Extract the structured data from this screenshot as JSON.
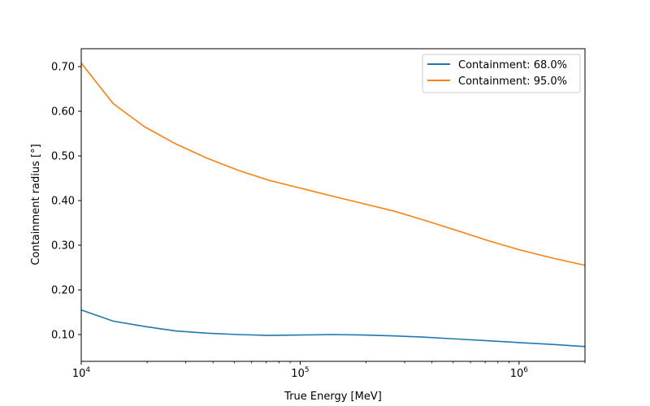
{
  "chart_data": {
    "type": "line",
    "title": "",
    "xlabel": "True Energy [MeV]",
    "ylabel": "Containment radius [°]",
    "xscale": "log",
    "xlim": [
      10000,
      2000000
    ],
    "ylim": [
      0.04,
      0.74
    ],
    "x_ticks": [
      {
        "value": 10000,
        "base": "10",
        "exp": "4"
      },
      {
        "value": 100000,
        "base": "10",
        "exp": "5"
      },
      {
        "value": 1000000,
        "base": "10",
        "exp": "6"
      }
    ],
    "y_ticks": [
      {
        "value": 0.1,
        "label": "0.10"
      },
      {
        "value": 0.2,
        "label": "0.20"
      },
      {
        "value": 0.3,
        "label": "0.30"
      },
      {
        "value": 0.4,
        "label": "0.40"
      },
      {
        "value": 0.5,
        "label": "0.50"
      },
      {
        "value": 0.6,
        "label": "0.60"
      },
      {
        "value": 0.7,
        "label": "0.70"
      }
    ],
    "grid": false,
    "legend_position": "top-right",
    "series": [
      {
        "name": "Containment: 68.0%",
        "color": "#1f77b4",
        "x": [
          10000,
          14000,
          19500,
          27000,
          37500,
          52000,
          72500,
          100000,
          140000,
          195000,
          270000,
          375000,
          520000,
          725000,
          1000000,
          1400000,
          2000000
        ],
        "y": [
          0.155,
          0.13,
          0.118,
          0.108,
          0.103,
          0.1,
          0.098,
          0.099,
          0.1,
          0.099,
          0.097,
          0.094,
          0.09,
          0.086,
          0.082,
          0.078,
          0.073
        ]
      },
      {
        "name": "Containment: 95.0%",
        "color": "#ff7f0e",
        "x": [
          10000,
          14000,
          19500,
          27000,
          37500,
          52000,
          72500,
          100000,
          140000,
          195000,
          270000,
          375000,
          520000,
          725000,
          1000000,
          1400000,
          2000000
        ],
        "y": [
          0.708,
          0.617,
          0.565,
          0.527,
          0.495,
          0.468,
          0.445,
          0.428,
          0.41,
          0.393,
          0.376,
          0.355,
          0.333,
          0.31,
          0.29,
          0.272,
          0.255
        ]
      }
    ]
  }
}
